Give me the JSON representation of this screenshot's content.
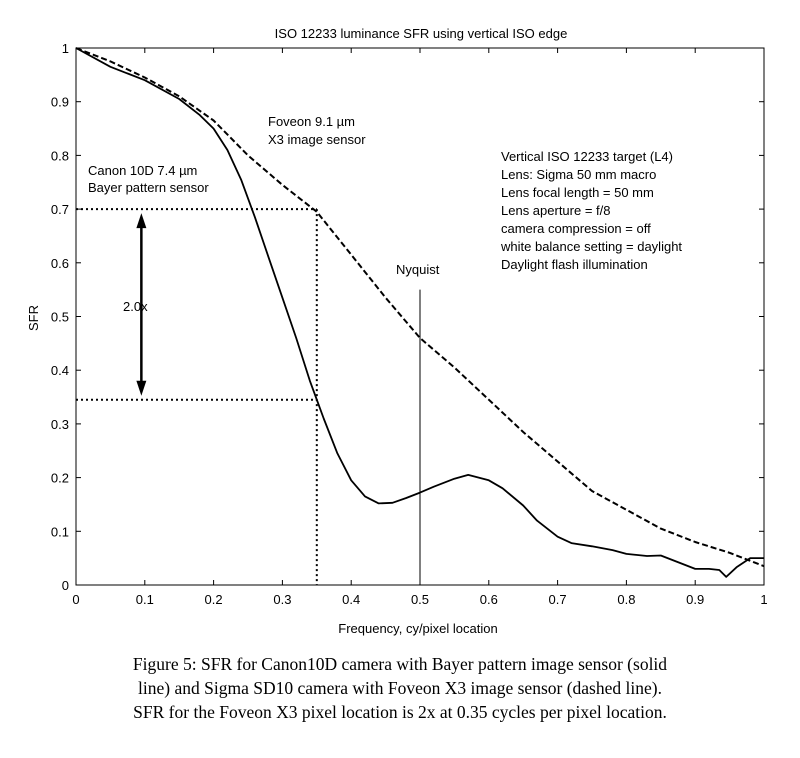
{
  "chart_data": {
    "type": "line",
    "title": "ISO 12233 luminance SFR using vertical ISO edge",
    "xlabel": "Frequency, cy/pixel location",
    "ylabel": "SFR",
    "xlim": [
      0,
      1
    ],
    "ylim": [
      0,
      1
    ],
    "x_ticks": [
      0,
      0.1,
      0.2,
      0.3,
      0.4,
      0.5,
      0.6,
      0.7,
      0.8,
      0.9,
      1
    ],
    "y_ticks": [
      0,
      0.1,
      0.2,
      0.3,
      0.4,
      0.5,
      0.6,
      0.7,
      0.8,
      0.9,
      1
    ],
    "x_tick_labels": [
      "0",
      "0.1",
      "0.2",
      "0.3",
      "0.4",
      "0.5",
      "0.6",
      "0.7",
      "0.8",
      "0.9",
      "1"
    ],
    "y_tick_labels": [
      "0",
      "0.1",
      "0.2",
      "0.3",
      "0.4",
      "0.5",
      "0.6",
      "0.7",
      "0.8",
      "0.9",
      "1"
    ],
    "grid": false,
    "series": [
      {
        "name": "Canon 10D 7.4 µm Bayer pattern sensor",
        "style": "solid",
        "x": [
          0,
          0.05,
          0.1,
          0.15,
          0.18,
          0.2,
          0.22,
          0.24,
          0.26,
          0.28,
          0.3,
          0.32,
          0.34,
          0.35,
          0.36,
          0.38,
          0.4,
          0.42,
          0.44,
          0.46,
          0.48,
          0.5,
          0.52,
          0.55,
          0.57,
          0.6,
          0.62,
          0.65,
          0.67,
          0.7,
          0.72,
          0.75,
          0.78,
          0.8,
          0.83,
          0.85,
          0.88,
          0.9,
          0.92,
          0.935,
          0.945,
          0.96,
          0.98,
          1.0
        ],
        "values": [
          1,
          0.965,
          0.94,
          0.905,
          0.875,
          0.85,
          0.81,
          0.755,
          0.685,
          0.61,
          0.535,
          0.46,
          0.38,
          0.345,
          0.31,
          0.245,
          0.195,
          0.165,
          0.152,
          0.153,
          0.162,
          0.172,
          0.183,
          0.198,
          0.205,
          0.195,
          0.18,
          0.148,
          0.12,
          0.09,
          0.078,
          0.072,
          0.065,
          0.058,
          0.054,
          0.055,
          0.04,
          0.03,
          0.03,
          0.028,
          0.015,
          0.033,
          0.05,
          0.05
        ]
      },
      {
        "name": "Foveon 9.1 µm X3 image sensor",
        "style": "dashed",
        "x": [
          0,
          0.05,
          0.1,
          0.15,
          0.2,
          0.25,
          0.3,
          0.35,
          0.4,
          0.45,
          0.5,
          0.55,
          0.6,
          0.65,
          0.7,
          0.75,
          0.8,
          0.85,
          0.9,
          0.95,
          1.0
        ],
        "values": [
          1,
          0.975,
          0.945,
          0.91,
          0.865,
          0.8,
          0.745,
          0.695,
          0.615,
          0.535,
          0.46,
          0.405,
          0.345,
          0.285,
          0.23,
          0.175,
          0.14,
          0.105,
          0.08,
          0.06,
          0.035
        ]
      }
    ],
    "reference_lines": {
      "vertical_0_35_to": 0.7,
      "nyquist_x": 0.5,
      "nyquist_top": 0.55,
      "horizontal_y1": 0.7,
      "horizontal_y2": 0.345,
      "horizontal_x_end": 0.35,
      "arrow_x": 0.095
    },
    "annotations": {
      "canon_line1": "Canon 10D 7.4 µm",
      "canon_line2": "Bayer pattern sensor",
      "foveon_line1": "Foveon 9.1 µm",
      "foveon_line2": "X3 image sensor",
      "ratio": "2.0x",
      "nyquist": "Nyquist",
      "info_lines": [
        "Vertical ISO 12233 target (L4)",
        "Lens: Sigma 50 mm macro",
        "Lens focal length = 50 mm",
        "Lens aperture = f/8",
        "camera compression = off",
        "white balance setting = daylight",
        "Daylight flash illumination"
      ]
    }
  },
  "caption": {
    "line1": "Figure 5: SFR for Canon10D camera with Bayer pattern image sensor (solid",
    "line2": "line) and Sigma SD10 camera with Foveon X3 image sensor  (dashed line).",
    "line3": "SFR for the Foveon X3 pixel location is 2x at 0.35 cycles per pixel location."
  }
}
